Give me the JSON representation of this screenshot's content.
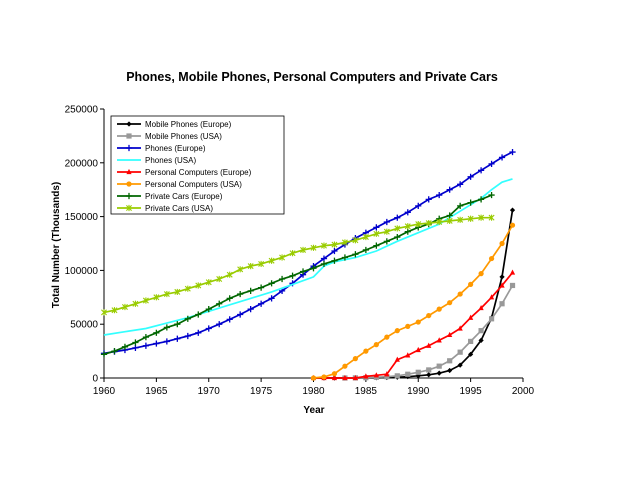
{
  "chart_data": {
    "type": "line",
    "title": "Phones, Mobile Phones, Personal Computers and Private Cars",
    "xlabel": "Year",
    "ylabel": "Total Number (Thousands)",
    "xlim": [
      1960,
      2000
    ],
    "ylim": [
      0,
      250000
    ],
    "xticks": [
      1960,
      1965,
      1970,
      1975,
      1980,
      1985,
      1990,
      1995,
      2000
    ],
    "yticks": [
      0,
      50000,
      100000,
      150000,
      200000,
      250000
    ],
    "ytick_labels": [
      "0",
      "50000",
      "100000",
      "150000",
      "200000",
      "250000"
    ],
    "grid": false,
    "legend_position": "top-left",
    "series": [
      {
        "name": "Mobile Phones (Europe)",
        "color": "#000000",
        "marker": "diamond",
        "x": [
          1980,
          1981,
          1982,
          1983,
          1984,
          1985,
          1986,
          1987,
          1988,
          1989,
          1990,
          1991,
          1992,
          1993,
          1994,
          1995,
          1996,
          1997,
          1998,
          1999
        ],
        "y": [
          0,
          0,
          0,
          0,
          0,
          100,
          200,
          400,
          700,
          1200,
          2000,
          3000,
          4500,
          7000,
          12000,
          22000,
          35000,
          56000,
          94000,
          156000
        ]
      },
      {
        "name": "Mobile Phones (USA)",
        "color": "#999999",
        "marker": "square",
        "x": [
          1983,
          1984,
          1985,
          1986,
          1987,
          1988,
          1989,
          1990,
          1991,
          1992,
          1993,
          1994,
          1995,
          1996,
          1997,
          1998,
          1999
        ],
        "y": [
          0,
          100,
          300,
          700,
          1200,
          2000,
          3500,
          5300,
          7500,
          11000,
          16000,
          24000,
          34000,
          44000,
          55000,
          69000,
          86000
        ]
      },
      {
        "name": "Phones (Europe)",
        "color": "#0000cc",
        "marker": "plus",
        "x": [
          1960,
          1961,
          1962,
          1963,
          1964,
          1965,
          1966,
          1967,
          1968,
          1969,
          1970,
          1971,
          1972,
          1973,
          1974,
          1975,
          1976,
          1977,
          1978,
          1979,
          1980,
          1981,
          1982,
          1983,
          1984,
          1985,
          1986,
          1987,
          1988,
          1989,
          1990,
          1991,
          1992,
          1993,
          1994,
          1995,
          1996,
          1997,
          1998,
          1999
        ],
        "y": [
          23000,
          24500,
          26000,
          28000,
          30000,
          32000,
          34000,
          36500,
          39000,
          42000,
          46000,
          50000,
          54500,
          59000,
          64000,
          69000,
          74000,
          81000,
          88000,
          96000,
          104000,
          111000,
          118000,
          124000,
          130000,
          135000,
          140000,
          145000,
          149000,
          154000,
          160000,
          166000,
          170000,
          175000,
          180000,
          187000,
          193000,
          199000,
          205000,
          210000
        ]
      },
      {
        "name": "Phones (USA)",
        "color": "#33ffff",
        "marker": "none",
        "x": [
          1960,
          1962,
          1964,
          1966,
          1968,
          1970,
          1972,
          1974,
          1976,
          1978,
          1980,
          1981,
          1982,
          1984,
          1986,
          1988,
          1990,
          1992,
          1994,
          1996,
          1997,
          1998,
          1999
        ],
        "y": [
          40000,
          43000,
          46000,
          51000,
          56000,
          62000,
          68000,
          74000,
          80000,
          87000,
          94000,
          104000,
          108000,
          112000,
          118000,
          127000,
          135000,
          143000,
          155000,
          167000,
          175000,
          182000,
          185000
        ]
      },
      {
        "name": "Personal Computers (Europe)",
        "color": "#ff0000",
        "marker": "triangle",
        "x": [
          1980,
          1981,
          1982,
          1983,
          1984,
          1985,
          1986,
          1987,
          1988,
          1989,
          1990,
          1991,
          1992,
          1993,
          1994,
          1995,
          1996,
          1997,
          1998,
          1999
        ],
        "y": [
          0,
          0,
          0,
          0,
          0,
          1500,
          2500,
          3500,
          17000,
          21000,
          26000,
          30000,
          35000,
          40000,
          46000,
          56000,
          65000,
          75000,
          86000,
          98000
        ]
      },
      {
        "name": "Personal Computers (USA)",
        "color": "#ff9900",
        "marker": "circle",
        "x": [
          1980,
          1981,
          1982,
          1983,
          1984,
          1985,
          1986,
          1987,
          1988,
          1989,
          1990,
          1991,
          1992,
          1993,
          1994,
          1995,
          1996,
          1997,
          1998,
          1999
        ],
        "y": [
          0,
          1000,
          4000,
          11000,
          18000,
          25000,
          31000,
          38000,
          44000,
          48000,
          52000,
          58000,
          64000,
          70000,
          78000,
          87000,
          97000,
          111000,
          125000,
          142000
        ]
      },
      {
        "name": "Private Cars (Europe)",
        "color": "#006600",
        "marker": "plus",
        "x": [
          1960,
          1961,
          1962,
          1963,
          1964,
          1965,
          1966,
          1967,
          1968,
          1969,
          1970,
          1971,
          1972,
          1973,
          1974,
          1975,
          1976,
          1977,
          1978,
          1979,
          1980,
          1981,
          1982,
          1983,
          1984,
          1985,
          1986,
          1987,
          1988,
          1989,
          1990,
          1991,
          1992,
          1993,
          1994,
          1995,
          1996,
          1997
        ],
        "y": [
          22000,
          25000,
          29000,
          33000,
          38000,
          42000,
          47000,
          50000,
          55000,
          59000,
          64000,
          69000,
          74000,
          78000,
          81000,
          84000,
          88000,
          92000,
          95000,
          99000,
          102000,
          106000,
          109000,
          112000,
          115000,
          119000,
          123000,
          127000,
          131000,
          136000,
          140000,
          143000,
          148000,
          151000,
          160000,
          163000,
          166000,
          170000
        ]
      },
      {
        "name": "Private Cars (USA)",
        "color": "#99cc00",
        "marker": "star",
        "x": [
          1960,
          1961,
          1962,
          1963,
          1964,
          1965,
          1966,
          1967,
          1968,
          1969,
          1970,
          1971,
          1972,
          1973,
          1974,
          1975,
          1976,
          1977,
          1978,
          1979,
          1980,
          1981,
          1982,
          1983,
          1984,
          1985,
          1986,
          1987,
          1988,
          1989,
          1990,
          1991,
          1992,
          1993,
          1994,
          1995,
          1996,
          1997
        ],
        "y": [
          61000,
          63000,
          66000,
          69000,
          72000,
          75000,
          78000,
          80000,
          83000,
          86000,
          89000,
          92000,
          96000,
          101000,
          104000,
          106000,
          109000,
          112000,
          116000,
          119000,
          121000,
          123000,
          124000,
          126000,
          128000,
          131000,
          134000,
          136000,
          139000,
          141000,
          143000,
          144000,
          145000,
          146000,
          147000,
          148000,
          149000,
          149000
        ]
      }
    ]
  }
}
